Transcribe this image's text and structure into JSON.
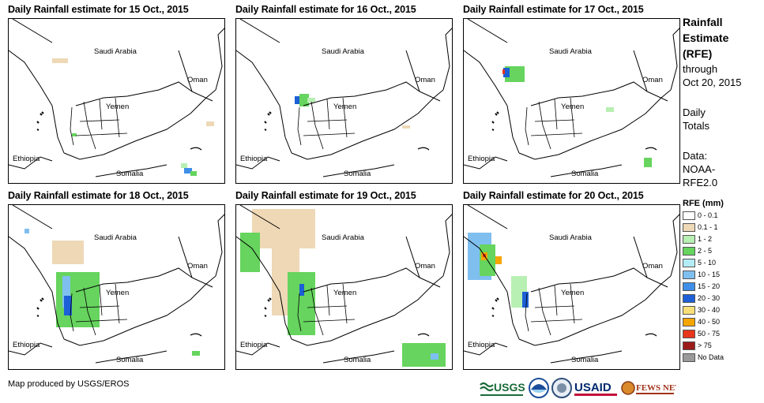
{
  "panels": [
    {
      "title": "Daily Rainfall estimate for 15 Oct., 2015"
    },
    {
      "title": "Daily Rainfall estimate for 16 Oct., 2015"
    },
    {
      "title": "Daily Rainfall estimate for 17 Oct., 2015"
    },
    {
      "title": "Daily Rainfall estimate for 18 Oct., 2015"
    },
    {
      "title": "Daily Rainfall estimate for 19 Oct., 2015"
    },
    {
      "title": "Daily Rainfall estimate for 20 Oct., 2015"
    }
  ],
  "map_labels": {
    "saudi": "Saudi Arabia",
    "oman": "Oman",
    "yemen": "Yemen",
    "ethiopia": "Ethiopia",
    "somalia": "Somalia"
  },
  "sidebar": {
    "title_lines": [
      "Rainfall",
      "Estimate",
      "(RFE)"
    ],
    "sub_lines": [
      "through",
      "Oct 20, 2015"
    ],
    "daily_lines": [
      "Daily",
      "Totals"
    ],
    "data_lines": [
      "Data:",
      "NOAA-",
      "RFE2.0"
    ],
    "legend_title": "RFE (mm)"
  },
  "legend": [
    {
      "label": "0 - 0.1",
      "color": "#ffffff"
    },
    {
      "label": "0.1 - 1",
      "color": "#eed8b6"
    },
    {
      "label": "1 - 2",
      "color": "#b8efb2"
    },
    {
      "label": "2 - 5",
      "color": "#66d45e"
    },
    {
      "label": "5 - 10",
      "color": "#b3ecf5"
    },
    {
      "label": "10 - 15",
      "color": "#7fbff0"
    },
    {
      "label": "15 - 20",
      "color": "#3f8fe8"
    },
    {
      "label": "20 - 30",
      "color": "#1c5fd6"
    },
    {
      "label": "30 - 40",
      "color": "#f7e07a"
    },
    {
      "label": "40 - 50",
      "color": "#f5a500"
    },
    {
      "label": "50 - 75",
      "color": "#e8361c"
    },
    {
      "label": "> 75",
      "color": "#9b1b1b"
    },
    {
      "label": "No Data",
      "color": "#9a9a9a"
    }
  ],
  "credit": "Map produced by USGS/EROS",
  "logos": {
    "usgs": "USGS",
    "usaid": "USAID",
    "fews": "FEWS NET"
  }
}
